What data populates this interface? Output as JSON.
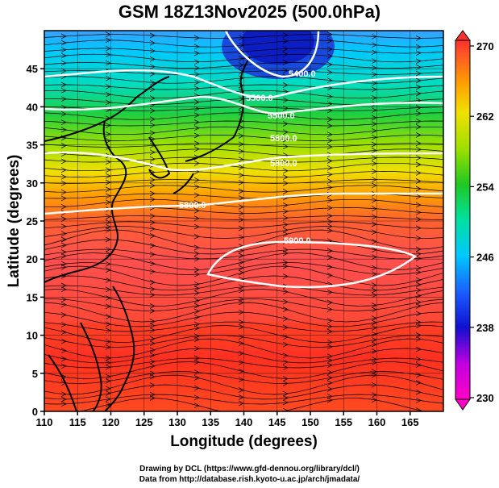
{
  "title": "GSM 18Z13Nov2025 (500.0hPa)",
  "xlabel": "Longitude (degrees)",
  "ylabel": "Latitude  (degrees)",
  "credits": {
    "line1": "Drawing by DCL (https://www.gfd-dennou.org/library/dcl/)",
    "line2": "Data from http://database.rish.kyoto-u.ac.jp/arch/jmadata/"
  },
  "chart_data": {
    "type": "heatmap",
    "x_ticks": [
      "110",
      "115",
      "120",
      "125",
      "130",
      "135",
      "140",
      "145",
      "150",
      "155",
      "160",
      "165"
    ],
    "y_ticks": [
      "0",
      "5",
      "10",
      "15",
      "20",
      "25",
      "30",
      "35",
      "40",
      "45"
    ],
    "xlim": [
      110,
      170
    ],
    "ylim": [
      0,
      50
    ],
    "colorbar": {
      "ticks": [
        "230",
        "238",
        "246",
        "254",
        "262",
        "270"
      ],
      "range": [
        230,
        270
      ],
      "colors": [
        "#ff00c8",
        "#c000e0",
        "#1010d0",
        "#1a60ff",
        "#00c8ff",
        "#00e0a0",
        "#20c820",
        "#a0e000",
        "#f0e000",
        "#ffa000",
        "#ff6020",
        "#ff3030"
      ]
    },
    "contours": [
      {
        "label": "5400.0"
      },
      {
        "label": "5500.0"
      },
      {
        "label": "5500.0"
      },
      {
        "label": "5800.0"
      },
      {
        "label": "5800.0"
      },
      {
        "label": "5800.0"
      },
      {
        "label": "5900.0"
      }
    ]
  }
}
